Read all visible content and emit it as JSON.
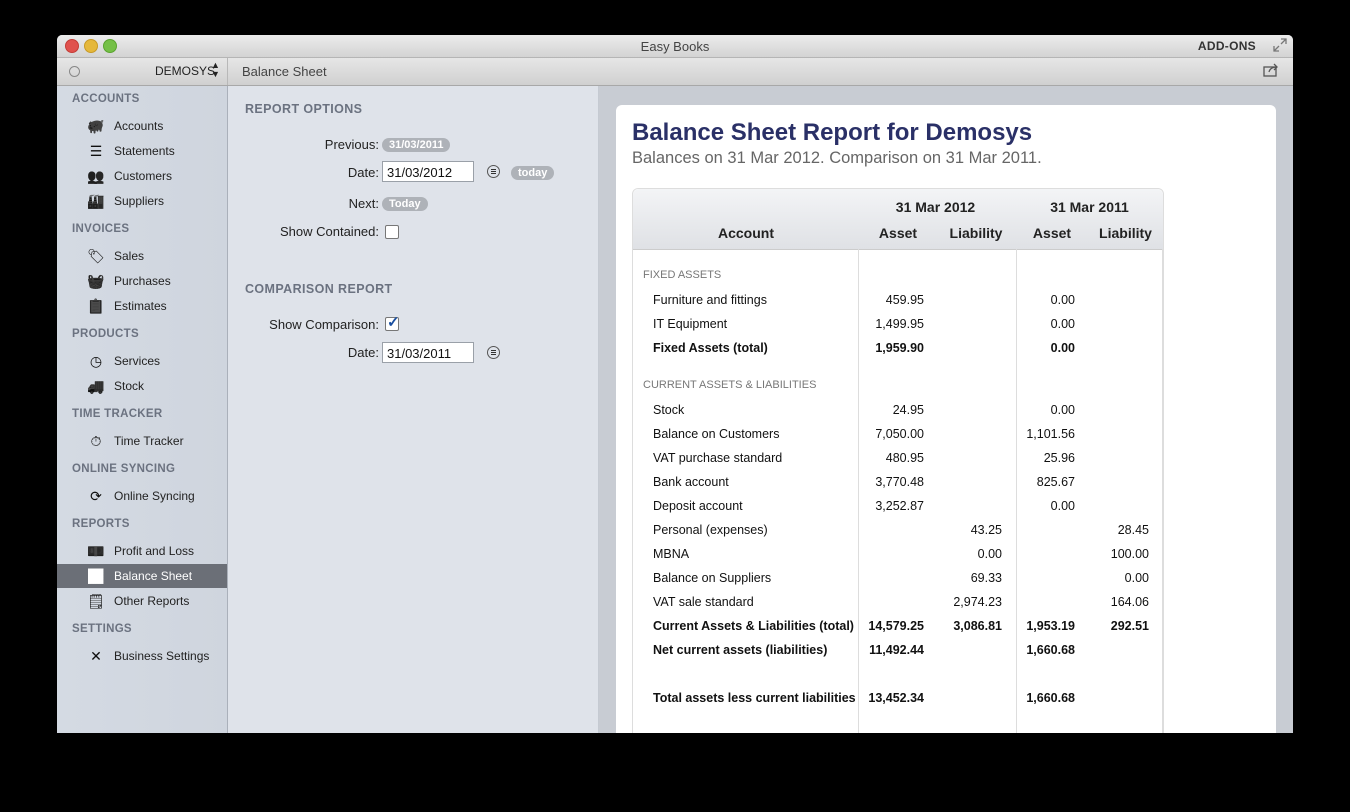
{
  "window": {
    "title": "Easy Books",
    "addons_label": "ADD-ONS",
    "company": "DEMOSYS",
    "page_title": "Balance Sheet"
  },
  "sidebar": {
    "sections": [
      {
        "header": "ACCOUNTS",
        "items": [
          {
            "label": "Accounts",
            "icon": "piggy-bank-icon"
          },
          {
            "label": "Statements",
            "icon": "statements-icon"
          },
          {
            "label": "Customers",
            "icon": "customers-icon"
          },
          {
            "label": "Suppliers",
            "icon": "suppliers-icon"
          }
        ]
      },
      {
        "header": "INVOICES",
        "items": [
          {
            "label": "Sales",
            "icon": "tag-icon"
          },
          {
            "label": "Purchases",
            "icon": "basket-icon"
          },
          {
            "label": "Estimates",
            "icon": "clipboard-icon"
          }
        ]
      },
      {
        "header": "PRODUCTS",
        "items": [
          {
            "label": "Services",
            "icon": "clock-icon"
          },
          {
            "label": "Stock",
            "icon": "truck-icon"
          }
        ]
      },
      {
        "header": "TIME TRACKER",
        "items": [
          {
            "label": "Time Tracker",
            "icon": "stopwatch-icon"
          }
        ]
      },
      {
        "header": "ONLINE SYNCING",
        "items": [
          {
            "label": "Online Syncing",
            "icon": "sync-icon"
          }
        ]
      },
      {
        "header": "REPORTS",
        "items": [
          {
            "label": "Profit and Loss",
            "icon": "money-icon"
          },
          {
            "label": "Balance Sheet",
            "icon": "line-chart-icon",
            "active": true
          },
          {
            "label": "Other Reports",
            "icon": "report-icon"
          }
        ]
      },
      {
        "header": "SETTINGS",
        "items": [
          {
            "label": "Business Settings",
            "icon": "tools-icon"
          }
        ]
      }
    ]
  },
  "options": {
    "report_options_header": "REPORT OPTIONS",
    "previous_label": "Previous:",
    "previous_value": "31/03/2011",
    "date_label": "Date:",
    "date_value": "31/03/2012",
    "today_label": "today",
    "next_label": "Next:",
    "next_value": "Today",
    "show_contained_label": "Show Contained:",
    "comparison_header": "COMPARISON REPORT",
    "show_comparison_label": "Show Comparison:",
    "comparison_date_label": "Date:",
    "comparison_date_value": "31/03/2011"
  },
  "report": {
    "title": "Balance Sheet Report for Demosys",
    "subtitle": "Balances on 31 Mar 2012. Comparison on 31 Mar 2011.",
    "headers": {
      "period1": "31 Mar 2012",
      "period2": "31 Mar 2011",
      "account": "Account",
      "asset1": "Asset",
      "liability1": "Liability",
      "asset2": "Asset",
      "liability2": "Liability"
    },
    "rows": [
      {
        "type": "section",
        "account": "FIXED ASSETS"
      },
      {
        "account": "Furniture and fittings",
        "a1": "459.95",
        "l1": "",
        "a2": "0.00",
        "l2": ""
      },
      {
        "account": "IT Equipment",
        "a1": "1,499.95",
        "l1": "",
        "a2": "0.00",
        "l2": ""
      },
      {
        "type": "total",
        "account": "Fixed Assets (total)",
        "a1": "1,959.90",
        "l1": "",
        "a2": "0.00",
        "l2": ""
      },
      {
        "type": "section",
        "account": "CURRENT ASSETS & LIABILITIES"
      },
      {
        "account": "Stock",
        "a1": "24.95",
        "l1": "",
        "a2": "0.00",
        "l2": ""
      },
      {
        "account": "Balance on Customers",
        "a1": "7,050.00",
        "l1": "",
        "a2": "1,101.56",
        "l2": ""
      },
      {
        "account": "VAT purchase standard",
        "a1": "480.95",
        "l1": "",
        "a2": "25.96",
        "l2": ""
      },
      {
        "account": "Bank account",
        "a1": "3,770.48",
        "l1": "",
        "a2": "825.67",
        "l2": ""
      },
      {
        "account": "Deposit account",
        "a1": "3,252.87",
        "l1": "",
        "a2": "0.00",
        "l2": ""
      },
      {
        "account": "Personal (expenses)",
        "a1": "",
        "l1": "43.25",
        "a2": "",
        "l2": "28.45"
      },
      {
        "account": "MBNA",
        "a1": "",
        "l1": "0.00",
        "a2": "",
        "l2": "100.00"
      },
      {
        "account": "Balance on Suppliers",
        "a1": "",
        "l1": "69.33",
        "a2": "",
        "l2": "0.00"
      },
      {
        "account": "VAT sale standard",
        "a1": "",
        "l1": "2,974.23",
        "a2": "",
        "l2": "164.06"
      },
      {
        "type": "total",
        "account": "Current Assets & Liabilities (total)",
        "a1": "14,579.25",
        "l1": "3,086.81",
        "a2": "1,953.19",
        "l2": "292.51"
      },
      {
        "type": "total",
        "account": "Net current assets (liabilities)",
        "a1": "11,492.44",
        "l1": "",
        "a2": "1,660.68",
        "l2": ""
      },
      {
        "type": "spacer"
      },
      {
        "type": "total",
        "account": "Total assets less current liabilities",
        "a1": "13,452.34",
        "l1": "",
        "a2": "1,660.68",
        "l2": ""
      }
    ]
  }
}
